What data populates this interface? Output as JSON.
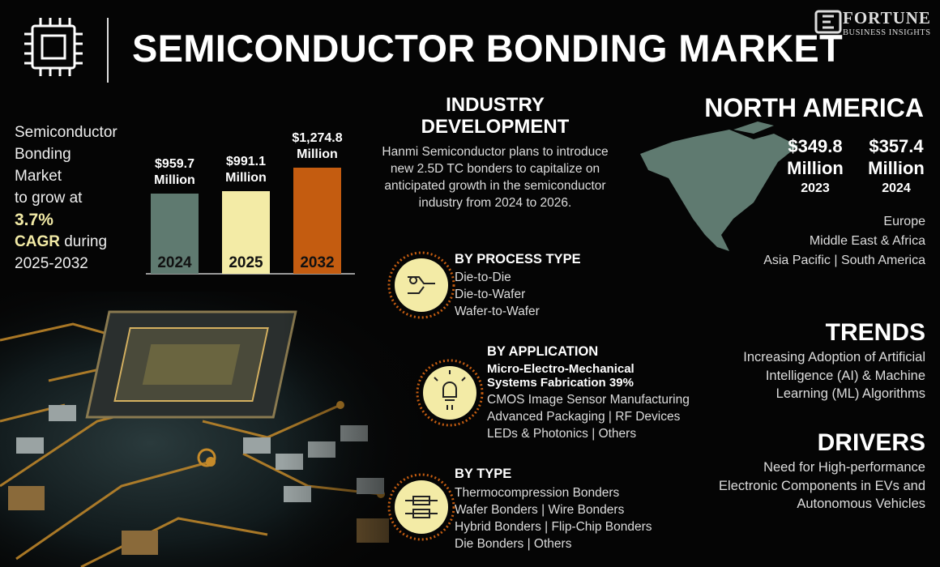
{
  "header": {
    "title": "SEMICONDUCTOR BONDING MARKET",
    "logo": "FORTUNE",
    "logo_sub": "BUSINESS INSIGHTS"
  },
  "growth": {
    "lines": [
      "Semiconductor",
      "Bonding",
      "Market",
      "to grow at"
    ],
    "cagr": "3.7%",
    "cagr_label": "CAGR",
    "during": "during",
    "period": "2025-2032"
  },
  "chart_data": {
    "type": "bar",
    "categories": [
      "2024",
      "2025",
      "2032"
    ],
    "values": [
      959.7,
      991.1,
      1274.8
    ],
    "value_labels": [
      "$959.7 Million",
      "$991.1 Million",
      "$1,274.8 Million"
    ],
    "colors": [
      "#5f7a70",
      "#f3eba6",
      "#c45c10"
    ]
  },
  "industry": {
    "title": "INDUSTRY DEVELOPMENT",
    "text": "Hanmi Semiconductor plans to introduce new 2.5D TC bonders to capitalize on anticipated growth in the semiconductor industry from 2024 to 2026."
  },
  "region": {
    "title": "NORTH AMERICA",
    "values": [
      {
        "amount": "$349.8 Million",
        "year": "2023"
      },
      {
        "amount": "$357.4 Million",
        "year": "2024"
      }
    ],
    "others": [
      "Europe",
      "Middle East & Africa",
      "Asia Pacific  |  South America"
    ]
  },
  "segments": [
    {
      "title": "BY PROCESS TYPE",
      "items": [
        "Die-to-Die",
        "Die-to-Wafer",
        "Wafer-to-Wafer"
      ]
    },
    {
      "title": "BY APPLICATION",
      "highlight": "Micro-Electro-Mechanical Systems Fabrication 39%",
      "items": [
        "CMOS Image Sensor Manufacturing",
        "Advanced Packaging  |  RF Devices",
        "LEDs & Photonics  |  Others"
      ]
    },
    {
      "title": "BY TYPE",
      "items": [
        "Thermocompression Bonders",
        "Wafer Bonders  |  Wire Bonders",
        "Hybrid Bonders  |  Flip-Chip Bonders",
        "Die Bonders  |  Others"
      ]
    }
  ],
  "trends": {
    "title": "TRENDS",
    "text": "Increasing Adoption of Artificial Intelligence (AI) & Machine Learning (ML) Algorithms"
  },
  "drivers": {
    "title": "DRIVERS",
    "text": "Need for High-performance Electronic Components in EVs and Autonomous Vehicles"
  }
}
